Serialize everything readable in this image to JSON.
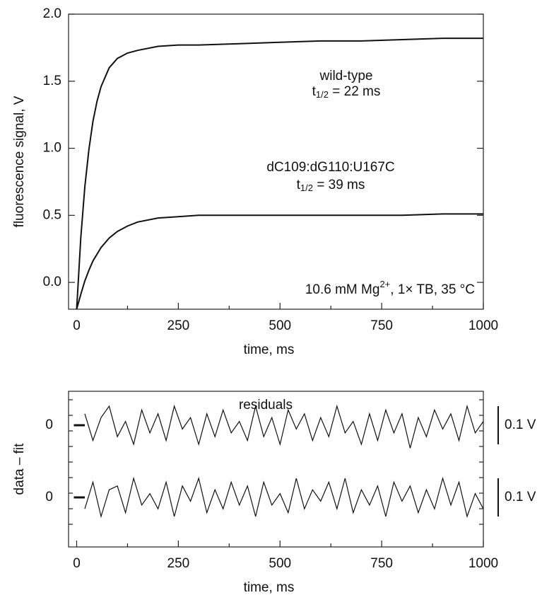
{
  "chart_data": [
    {
      "type": "line",
      "y_label": "fluorescence signal, V",
      "x_label": "time, ms",
      "xlim": [
        -20,
        1000
      ],
      "xticks": [
        0,
        250,
        500,
        750,
        1000
      ],
      "ylim": [
        -0.2,
        2.0
      ],
      "yticks": [
        {
          "value": 0,
          "label": "0.0"
        },
        0.5,
        {
          "value": 1,
          "label": "1.0"
        },
        1.5,
        {
          "value": 2,
          "label": "2.0"
        }
      ],
      "x": [
        0,
        10,
        20,
        30,
        40,
        50,
        60,
        80,
        100,
        125,
        150,
        200,
        250,
        300,
        400,
        500,
        600,
        700,
        800,
        900,
        1000
      ],
      "series": [
        {
          "name": "wild-type",
          "color": "#111111",
          "values": [
            -0.2,
            0.33,
            0.71,
            0.99,
            1.2,
            1.35,
            1.46,
            1.6,
            1.67,
            1.71,
            1.73,
            1.76,
            1.77,
            1.77,
            1.78,
            1.79,
            1.8,
            1.8,
            1.81,
            1.82,
            1.82
          ],
          "annotation": {
            "symbol": "t",
            "subscript": "1/2",
            "text": " = 22 ms"
          }
        },
        {
          "name": "dC109:dG110:U167C",
          "color": "#111111",
          "values": [
            -0.2,
            -0.09,
            0.01,
            0.09,
            0.16,
            0.21,
            0.26,
            0.33,
            0.38,
            0.42,
            0.45,
            0.48,
            0.49,
            0.5,
            0.5,
            0.5,
            0.5,
            0.5,
            0.5,
            0.51,
            0.51
          ],
          "annotation": {
            "symbol": "t",
            "subscript": "1/2",
            "text": " = 39 ms"
          }
        }
      ],
      "condition": {
        "text": "10.6 mM Mg",
        "superscript": "2+",
        "rest": ", 1× TB, 35 °C"
      }
    },
    {
      "type": "residuals",
      "title": "residuals",
      "y_label": "data – fit",
      "x_label": "time, ms",
      "xlim": [
        -20,
        1000
      ],
      "xticks": [
        0,
        250,
        500,
        750,
        1000
      ],
      "x": [
        20,
        40,
        60,
        80,
        100,
        120,
        140,
        160,
        180,
        200,
        220,
        240,
        260,
        280,
        300,
        320,
        340,
        360,
        380,
        400,
        420,
        440,
        460,
        480,
        500,
        520,
        540,
        560,
        580,
        600,
        620,
        640,
        660,
        680,
        700,
        720,
        740,
        760,
        780,
        800,
        820,
        840,
        860,
        880,
        900,
        920,
        940,
        960,
        980,
        1000
      ],
      "series": [
        {
          "ylim": [
            -0.1,
            0.1
          ],
          "yticks": [
            0
          ],
          "scale_bar": {
            "value": 0.1,
            "label": "0.1 V"
          },
          "color": "#111111",
          "values": [
            0.03,
            -0.04,
            0.02,
            0.05,
            -0.03,
            0.01,
            -0.05,
            0.04,
            -0.02,
            0.03,
            -0.04,
            0.05,
            -0.01,
            0.02,
            -0.05,
            0.03,
            -0.03,
            0.04,
            -0.02,
            0.01,
            -0.04,
            0.05,
            -0.03,
            0.02,
            -0.05,
            0.04,
            -0.01,
            0.03,
            -0.04,
            0.02,
            -0.03,
            0.05,
            -0.02,
            0.01,
            -0.05,
            0.03,
            -0.04,
            0.04,
            -0.02,
            0.03,
            -0.06,
            0.02,
            -0.03,
            0.04,
            -0.01,
            0.03,
            -0.04,
            0.05,
            -0.02,
            0.01
          ]
        },
        {
          "ylim": [
            -0.1,
            0.1
          ],
          "yticks": [
            0
          ],
          "scale_bar": {
            "value": 0.1,
            "label": "0.1 V"
          },
          "color": "#111111",
          "values": [
            -0.03,
            0.04,
            -0.05,
            0.02,
            0.03,
            -0.04,
            0.05,
            -0.02,
            0.01,
            -0.03,
            0.04,
            -0.05,
            0.03,
            -0.01,
            0.05,
            -0.04,
            0.02,
            -0.03,
            0.04,
            -0.02,
            0.03,
            -0.05,
            0.04,
            -0.02,
            0.01,
            -0.04,
            0.05,
            -0.03,
            0.02,
            -0.01,
            0.04,
            -0.03,
            0.05,
            -0.04,
            0.02,
            -0.02,
            0.03,
            -0.05,
            0.04,
            -0.01,
            0.03,
            -0.04,
            0.02,
            -0.03,
            0.05,
            -0.02,
            0.04,
            -0.05,
            0.01,
            -0.03
          ]
        }
      ]
    }
  ]
}
